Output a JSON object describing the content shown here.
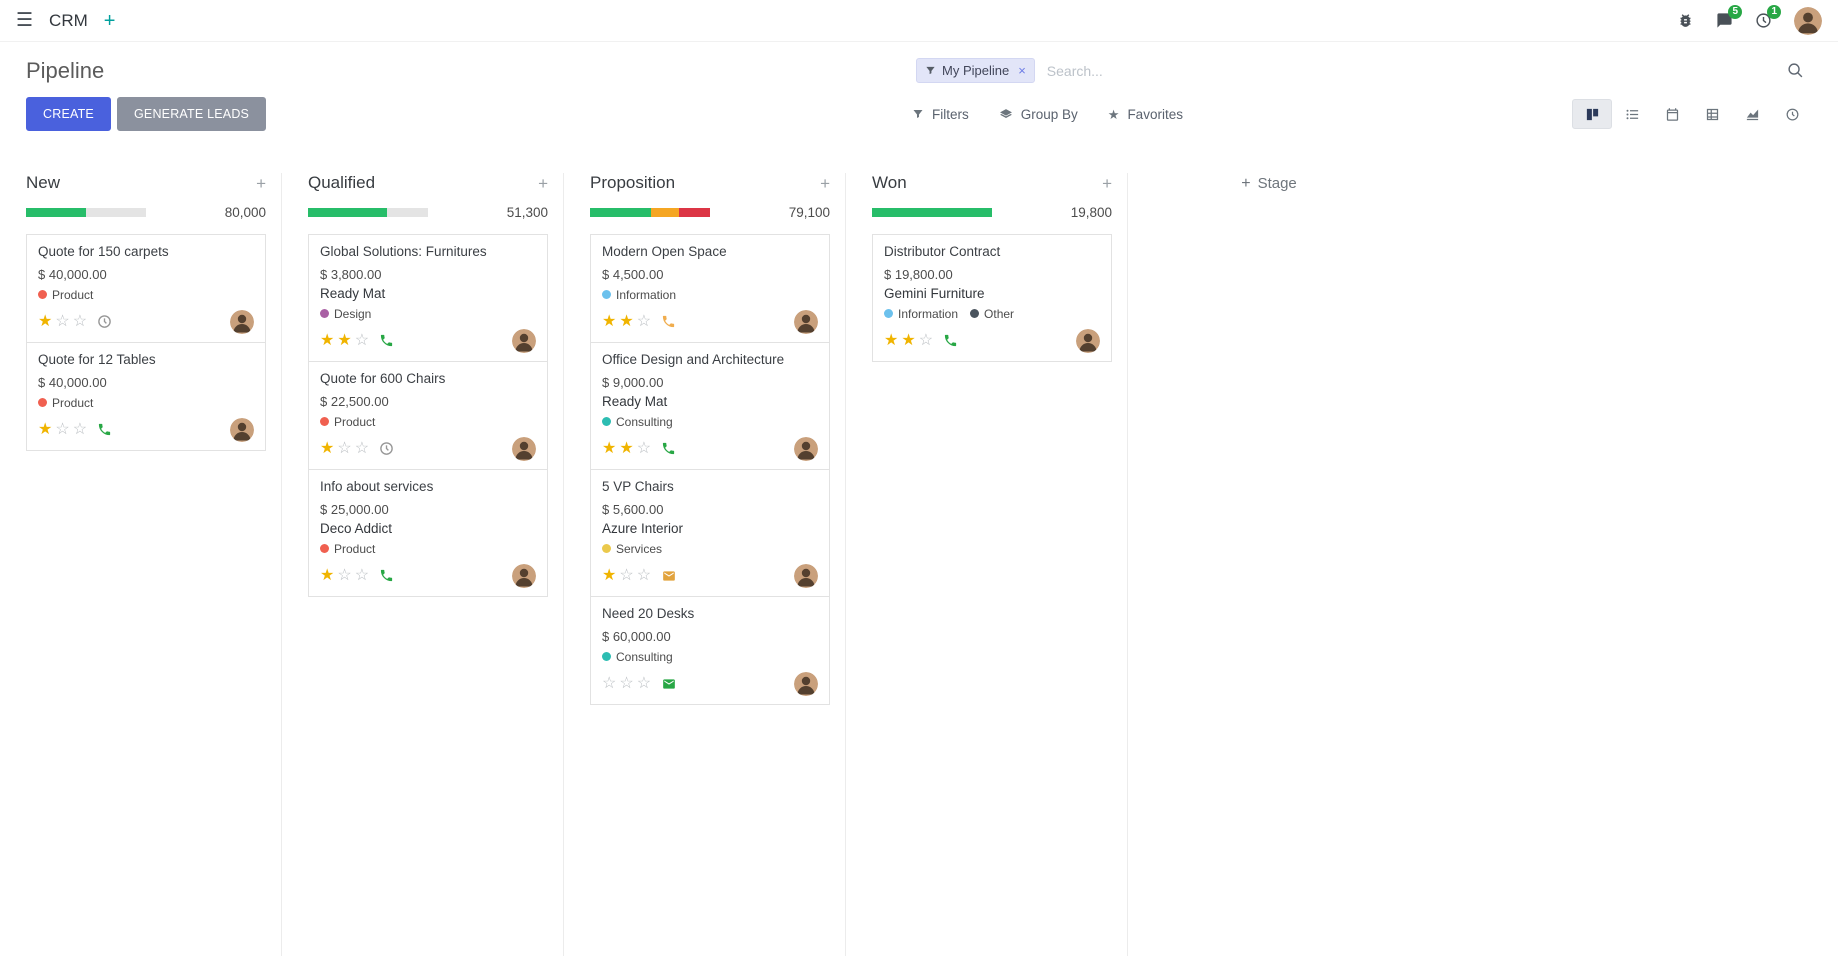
{
  "navbar": {
    "app_name": "CRM",
    "messages_badge": "5",
    "activities_badge": "1"
  },
  "control_panel": {
    "title": "Pipeline",
    "create_label": "CREATE",
    "generate_leads_label": "GENERATE LEADS",
    "filters_label": "Filters",
    "group_by_label": "Group By",
    "favorites_label": "Favorites",
    "search": {
      "facet_label": "My Pipeline",
      "placeholder": "Search...",
      "remove_facet": "×"
    }
  },
  "kanban": {
    "add_stage_label": "Stage",
    "columns": [
      {
        "name": "New",
        "total": "80,000",
        "progress": [
          {
            "color": "#27bd69",
            "pct": 50
          }
        ],
        "cards": [
          {
            "title": "Quote for 150 carpets",
            "amount": "$ 40,000.00",
            "tags": [
              {
                "label": "Product",
                "color": "#f06050"
              }
            ],
            "stars": 1,
            "activity": {
              "type": "clock",
              "color": "#979797"
            }
          },
          {
            "title": "Quote for 12 Tables",
            "amount": "$ 40,000.00",
            "tags": [
              {
                "label": "Product",
                "color": "#f06050"
              }
            ],
            "stars": 1,
            "activity": {
              "type": "phone",
              "color": "#28a745"
            }
          }
        ]
      },
      {
        "name": "Qualified",
        "total": "51,300",
        "progress": [
          {
            "color": "#27bd69",
            "pct": 66
          }
        ],
        "cards": [
          {
            "title": "Global Solutions: Furnitures",
            "amount": "$ 3,800.00",
            "company": "Ready Mat",
            "tags": [
              {
                "label": "Design",
                "color": "#a960a4"
              }
            ],
            "stars": 2,
            "activity": {
              "type": "phone",
              "color": "#28a745"
            }
          },
          {
            "title": "Quote for 600 Chairs",
            "amount": "$ 22,500.00",
            "tags": [
              {
                "label": "Product",
                "color": "#f06050"
              }
            ],
            "stars": 1,
            "activity": {
              "type": "clock",
              "color": "#979797"
            }
          },
          {
            "title": "Info about services",
            "amount": "$ 25,000.00",
            "company": "Deco Addict",
            "tags": [
              {
                "label": "Product",
                "color": "#f06050"
              }
            ],
            "stars": 1,
            "activity": {
              "type": "phone",
              "color": "#28a745"
            }
          }
        ]
      },
      {
        "name": "Proposition",
        "total": "79,100",
        "progress": [
          {
            "color": "#27bd69",
            "pct": 51
          },
          {
            "color": "#f5a623",
            "pct": 23
          },
          {
            "color": "#dc3545",
            "pct": 26
          }
        ],
        "cards": [
          {
            "title": "Modern Open Space",
            "amount": "$ 4,500.00",
            "tags": [
              {
                "label": "Information",
                "color": "#6cc1ed"
              }
            ],
            "stars": 2,
            "activity": {
              "type": "phone",
              "color": "#f0ad4e"
            }
          },
          {
            "title": "Office Design and Architecture",
            "amount": "$ 9,000.00",
            "company": "Ready Mat",
            "tags": [
              {
                "label": "Consulting",
                "color": "#2dbdb2"
              }
            ],
            "stars": 2,
            "activity": {
              "type": "phone",
              "color": "#28a745"
            }
          },
          {
            "title": "5 VP Chairs",
            "amount": "$ 5,600.00",
            "company": "Azure Interior",
            "tags": [
              {
                "label": "Services",
                "color": "#ebc94c"
              }
            ],
            "stars": 1,
            "activity": {
              "type": "envelope",
              "color": "#e2a33d"
            }
          },
          {
            "title": "Need 20 Desks",
            "amount": "$ 60,000.00",
            "tags": [
              {
                "label": "Consulting",
                "color": "#2dbdb2"
              }
            ],
            "stars": 0,
            "activity": {
              "type": "envelope",
              "color": "#28a745"
            }
          }
        ]
      },
      {
        "name": "Won",
        "total": "19,800",
        "progress": [
          {
            "color": "#27bd69",
            "pct": 100
          }
        ],
        "cards": [
          {
            "title": "Distributor Contract",
            "amount": "$ 19,800.00",
            "company": "Gemini Furniture",
            "tags": [
              {
                "label": "Information",
                "color": "#6cc1ed"
              },
              {
                "label": "Other",
                "color": "#4a545e"
              }
            ],
            "stars": 2,
            "activity": {
              "type": "phone",
              "color": "#28a745"
            }
          }
        ]
      }
    ]
  },
  "colors": {
    "primary_button": "#4a61dd",
    "secondary_button": "#8b919e",
    "badge_green": "#28a745",
    "progress_track": "#e4e4e4",
    "star_filled": "#f0b400",
    "star_empty": "#b9bdc1"
  }
}
